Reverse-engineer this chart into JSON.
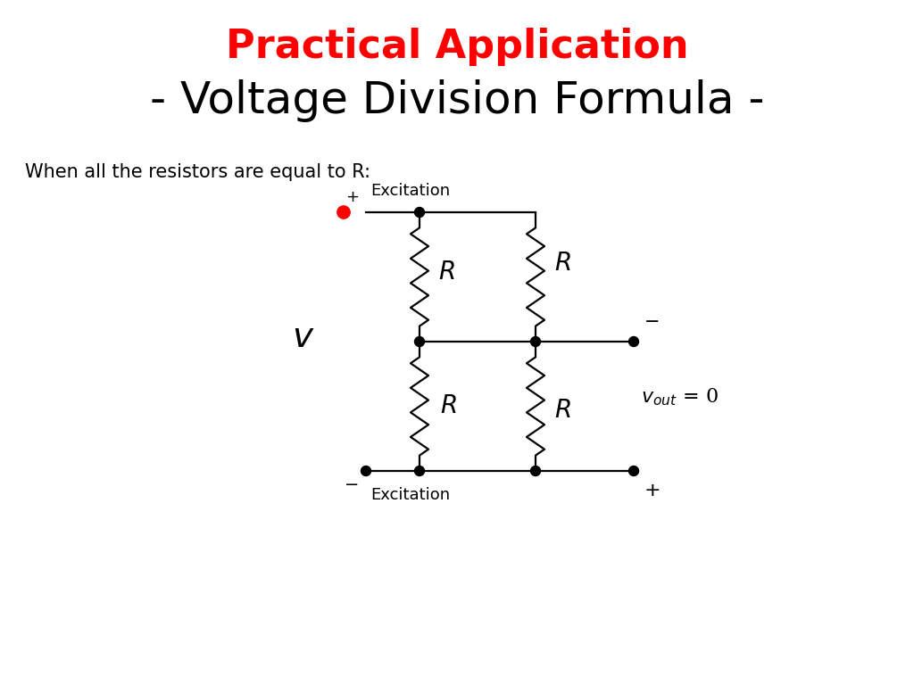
{
  "title_line1": "Practical Application",
  "title_line2": "- Voltage Division Formula -",
  "title_color1": "#FF0000",
  "title_color2": "#000000",
  "subtitle": "When all the resistors are equal to R:",
  "bg_color": "#FFFFFF",
  "title1_fontsize": 32,
  "title2_fontsize": 36,
  "subtitle_fontsize": 15
}
